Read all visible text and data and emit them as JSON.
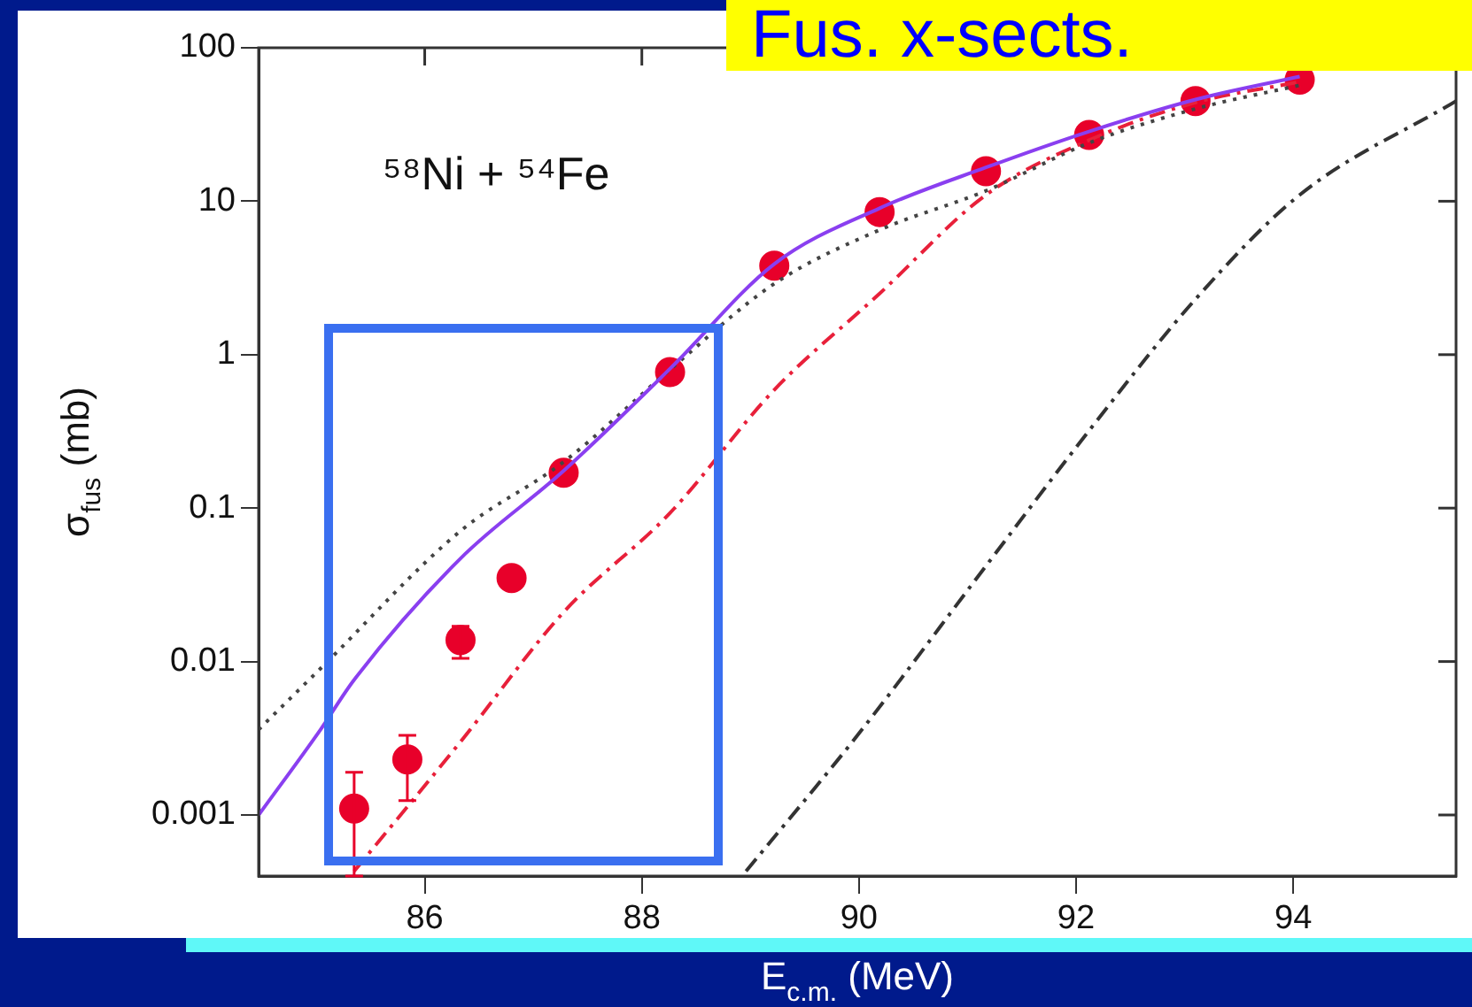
{
  "chart_data": {
    "type": "scatter",
    "title": "Fus. x-sects.",
    "xlabel": "E$_{c.m.}$ (MeV)",
    "ylabel": "σ$_{fus}$ (mb)",
    "annotations": [
      "⁵⁸Ni + ⁵⁴Fe"
    ],
    "log": "y",
    "grid": false,
    "legend": false,
    "xlim": [
      84.47,
      95.5
    ],
    "xticks": [
      86,
      88,
      90,
      92,
      94
    ],
    "ylim": [
      0.0004,
      100
    ],
    "yticks": [
      0.001,
      0.01,
      0.1,
      1,
      10,
      100
    ],
    "series": [
      {
        "type": "line",
        "color": "#8a3ff0",
        "line_style": "solid",
        "marker": "none",
        "x": [
          84.47,
          85.04,
          85.35,
          86.33,
          87.28,
          88.26,
          89.22,
          90.19,
          91.17,
          92.12,
          93.1,
          94.06
        ],
        "values": [
          0.001,
          0.0036,
          0.0076,
          0.047,
          0.175,
          0.81,
          3.9,
          9,
          16.6,
          28.5,
          46,
          65
        ]
      },
      {
        "type": "line",
        "color": "#444444",
        "line_style": "dotted",
        "marker": "none",
        "x": [
          84.47,
          85.04,
          86.33,
          87.28,
          88.26,
          89.22,
          90.19,
          91.17,
          92.12,
          93.1,
          94.06
        ],
        "values": [
          0.0036,
          0.009,
          0.071,
          0.2,
          0.8,
          2.9,
          6.5,
          11.7,
          24,
          40,
          57
        ]
      },
      {
        "type": "line",
        "color": "#e8203a",
        "line_style": "dashed",
        "marker": "none",
        "x": [
          85.35,
          86.33,
          87.28,
          88.26,
          89.22,
          90.19,
          91.17,
          92.12,
          93.1,
          94.06
        ],
        "values": [
          0.00043,
          0.003,
          0.021,
          0.093,
          0.59,
          2.5,
          11,
          25,
          44,
          60
        ]
      },
      {
        "type": "line",
        "color": "#333333",
        "line_style": "dashed",
        "marker": "none",
        "x": [
          88.96,
          90,
          91.17,
          92.12,
          93.1,
          94.06,
          95.5
        ],
        "values": [
          0.00043,
          0.0034,
          0.042,
          0.32,
          2.3,
          11,
          45
        ]
      },
      {
        "type": "scatter",
        "color": "#e8002a",
        "marker": "circle",
        "x": [
          85.35,
          85.84,
          86.33,
          86.8,
          87.28,
          88.26,
          89.22,
          90.19,
          91.17,
          92.12,
          93.1,
          94.06
        ],
        "values": [
          0.0011,
          0.0023,
          0.0138,
          0.035,
          0.17,
          0.77,
          3.8,
          8.5,
          15.7,
          27,
          45,
          62
        ],
        "errors": [
          [
            0.0004,
            0.0019
          ],
          [
            0.00124,
            0.0033
          ],
          [
            0.0105,
            0.017
          ],
          null,
          null,
          null,
          null,
          null,
          null,
          null,
          null,
          null
        ]
      }
    ]
  }
}
